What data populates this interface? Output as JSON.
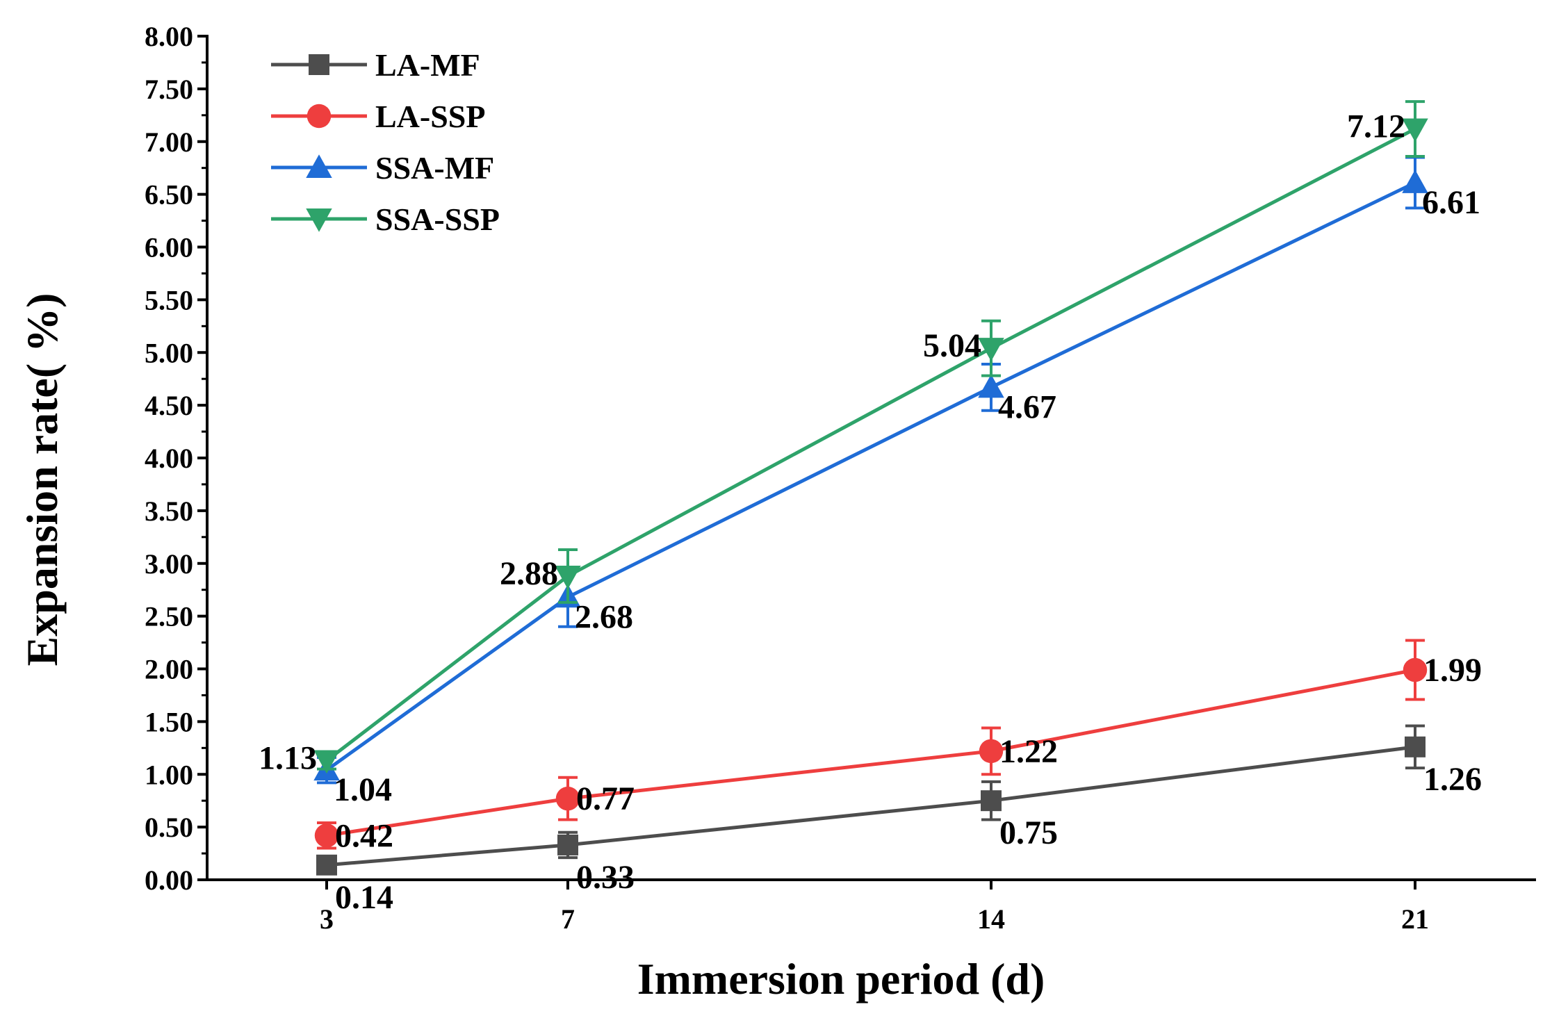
{
  "chart_data": {
    "type": "line",
    "title": "",
    "xlabel": "Immersion period (d)",
    "ylabel": "Expansion rate(   %)",
    "x": [
      3,
      7,
      14,
      21
    ],
    "x_tick_labels": [
      "3",
      "7",
      "14",
      "21"
    ],
    "ylim": [
      0,
      8
    ],
    "y_ticks": [
      "0.00",
      "0.50",
      "1.00",
      "1.50",
      "2.00",
      "2.50",
      "3.00",
      "3.50",
      "4.00",
      "4.50",
      "5.00",
      "5.50",
      "6.00",
      "6.50",
      "7.00",
      "7.50",
      "8.00"
    ],
    "grid": false,
    "legend_position": "top-left",
    "series": [
      {
        "name": "LA-MF",
        "color": "#4d4d4d",
        "marker": "square",
        "values": [
          0.14,
          0.33,
          0.75,
          1.26
        ],
        "errors": [
          0.08,
          0.12,
          0.18,
          0.2
        ],
        "labels": [
          "0.14",
          "0.33",
          "0.75",
          "1.26"
        ]
      },
      {
        "name": "LA-SSP",
        "color": "#ee3e3e",
        "marker": "circle",
        "values": [
          0.42,
          0.77,
          1.22,
          1.99
        ],
        "errors": [
          0.12,
          0.2,
          0.22,
          0.28
        ],
        "labels": [
          "0.42",
          "0.77",
          "1.22",
          "1.99"
        ]
      },
      {
        "name": "SSA-MF",
        "color": "#1f6cd6",
        "marker": "triangle-up",
        "values": [
          1.04,
          2.68,
          4.67,
          6.61
        ],
        "errors": [
          0.12,
          0.28,
          0.22,
          0.24
        ],
        "labels": [
          "1.04",
          "2.68",
          "4.67",
          "6.61"
        ]
      },
      {
        "name": "SSA-SSP",
        "color": "#2ea36a",
        "marker": "triangle-down",
        "values": [
          1.13,
          2.88,
          5.04,
          7.12
        ],
        "errors": [
          0.08,
          0.25,
          0.26,
          0.26
        ],
        "labels": [
          "1.13",
          "2.88",
          "5.04",
          "7.12"
        ]
      }
    ]
  }
}
